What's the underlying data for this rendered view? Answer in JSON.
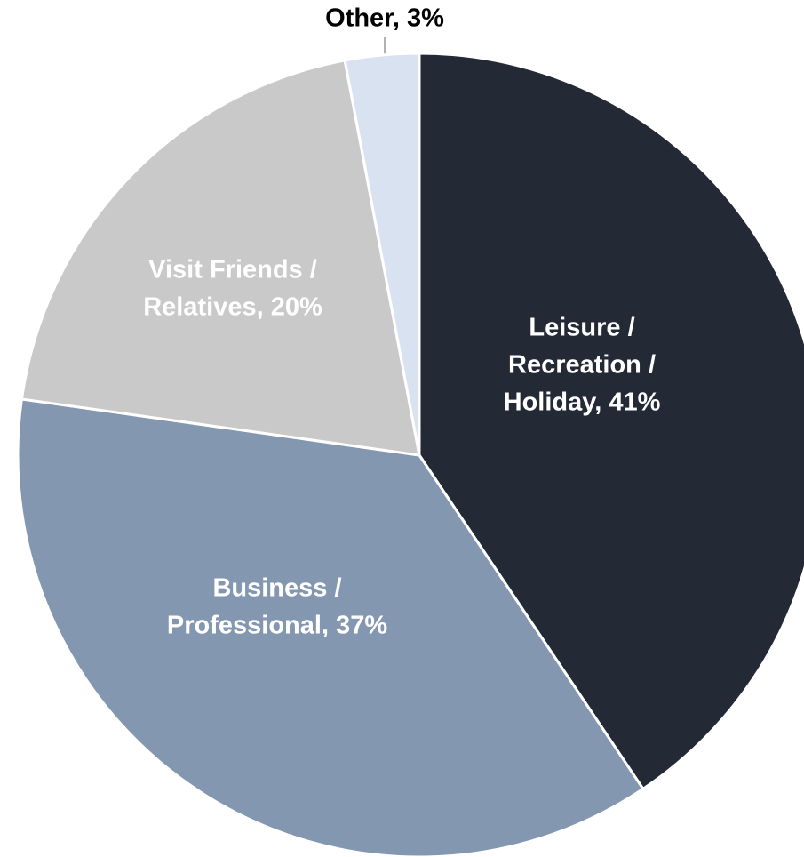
{
  "chart_data": {
    "type": "pie",
    "labels": [
      [
        "Leisure /",
        "Recreation /",
        "Holiday, 41%"
      ],
      [
        "Business /",
        "Professional, 37%"
      ],
      [
        "Visit Friends /",
        "Relatives, 20%"
      ],
      [
        "Other, 3%"
      ]
    ],
    "values": [
      41,
      37,
      20,
      3
    ],
    "colors": [
      "#232a35",
      "#8497b0",
      "#c9c9c9",
      "#d9e2f1"
    ]
  }
}
